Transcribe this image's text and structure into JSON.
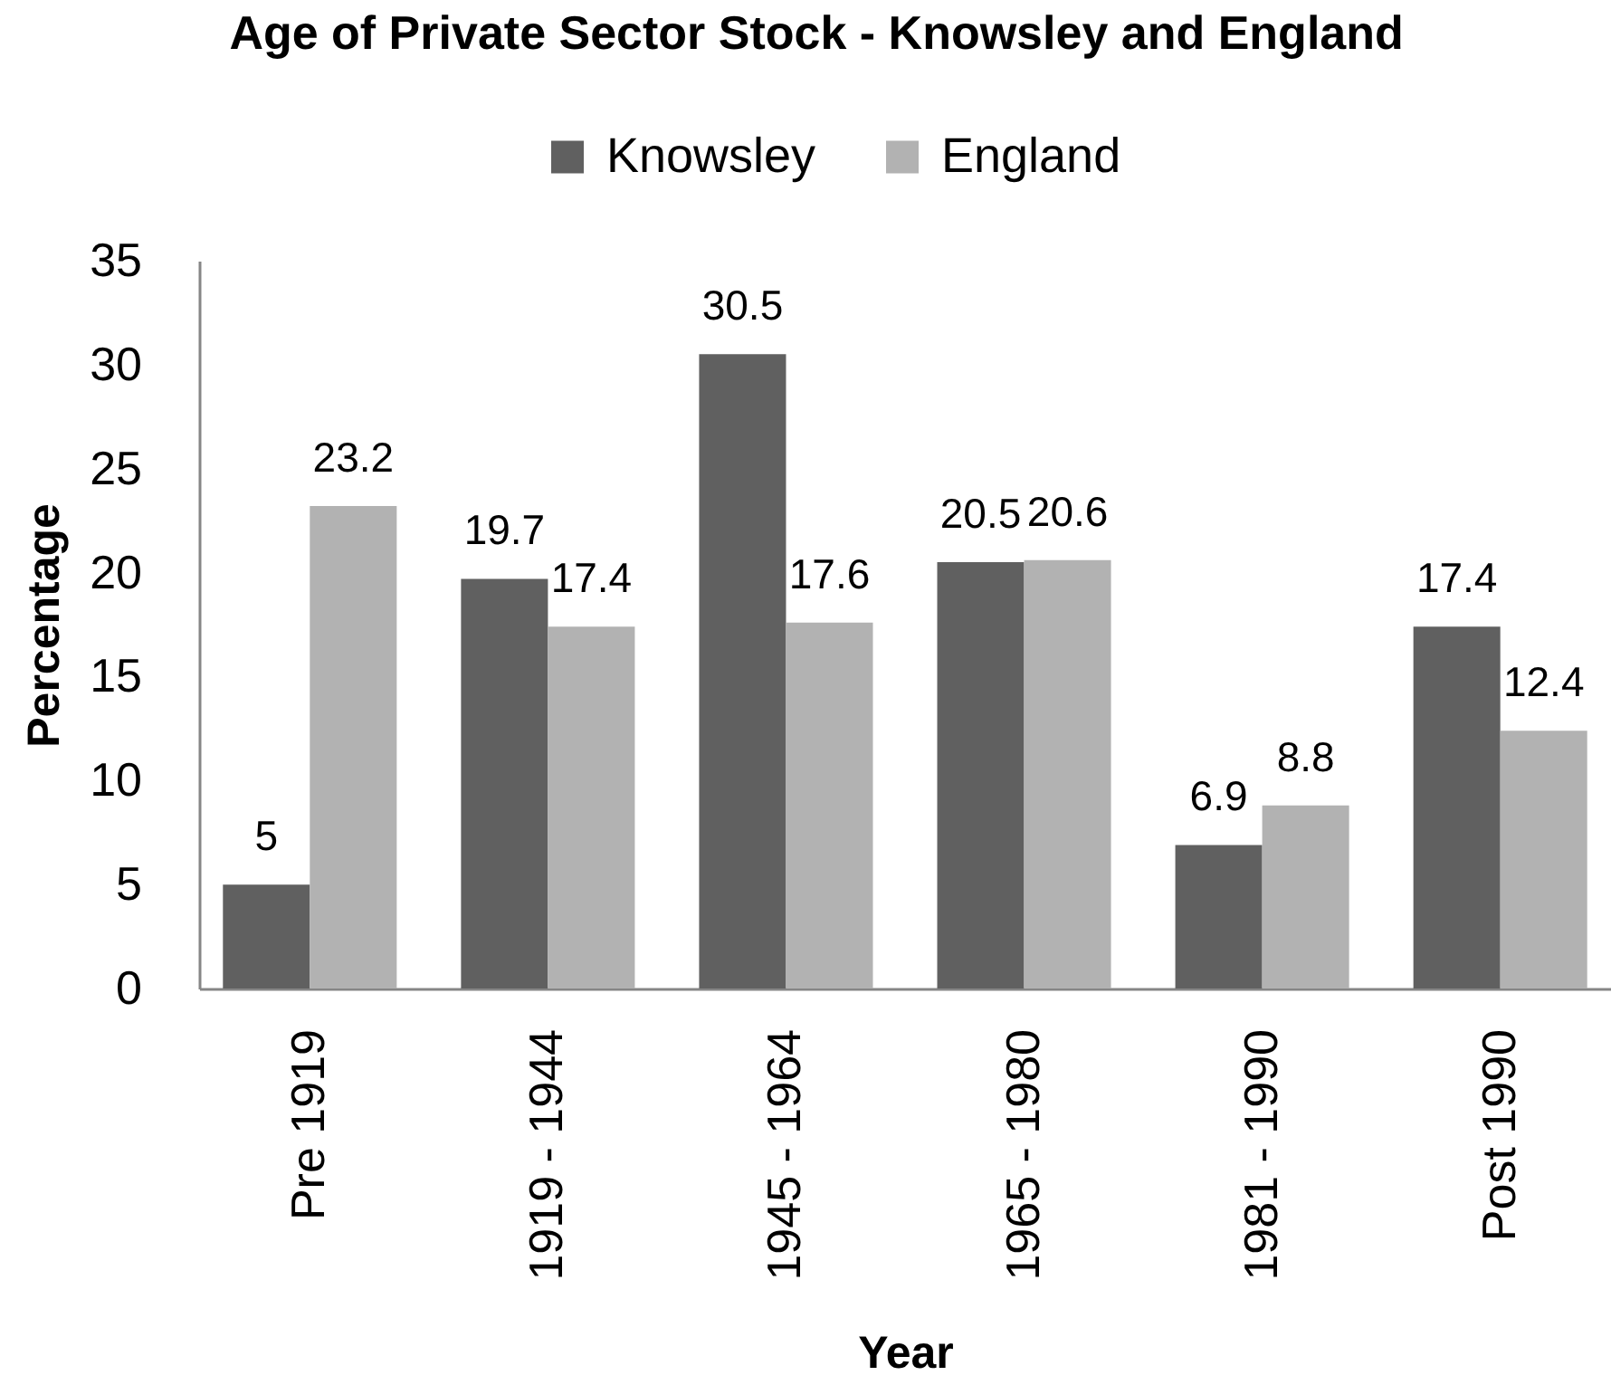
{
  "chart_data": {
    "type": "bar",
    "title": "Age of Private Sector Stock - Knowsley and England",
    "xlabel": "Year",
    "ylabel": "Percentage",
    "categories": [
      "Pre 1919",
      "1919 - 1944",
      "1945 - 1964",
      "1965 - 1980",
      "1981 - 1990",
      "Post 1990"
    ],
    "series": [
      {
        "name": "Knowsley",
        "color": "#606060",
        "values": [
          5,
          19.7,
          30.5,
          20.5,
          6.9,
          17.4
        ]
      },
      {
        "name": "England",
        "color": "#b2b2b2",
        "values": [
          23.2,
          17.4,
          17.6,
          20.6,
          8.8,
          12.4
        ]
      }
    ],
    "ylim": [
      0,
      35
    ],
    "yticks": [
      0,
      5,
      10,
      15,
      20,
      25,
      30,
      35
    ],
    "grid": false,
    "legend": "top",
    "data_labels": true
  }
}
